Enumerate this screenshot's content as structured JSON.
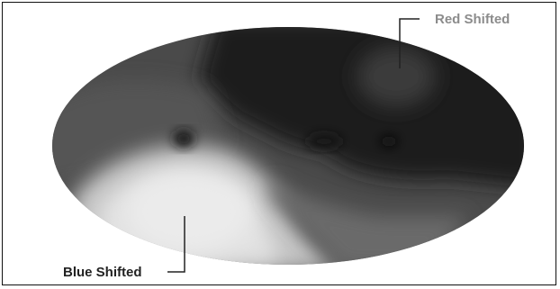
{
  "figure": {
    "annotations": {
      "red_shifted": "Red Shifted",
      "blue_shifted": "Blue Shifted"
    },
    "colors": {
      "background": "#ffffff",
      "frame_border": "#111111",
      "sky_dark": "#1c1c1c",
      "sky_mid": "#4a4a4a",
      "sky_light": "#e2e2e2",
      "red_label": "#8c8c8c",
      "blue_label": "#222222"
    }
  }
}
